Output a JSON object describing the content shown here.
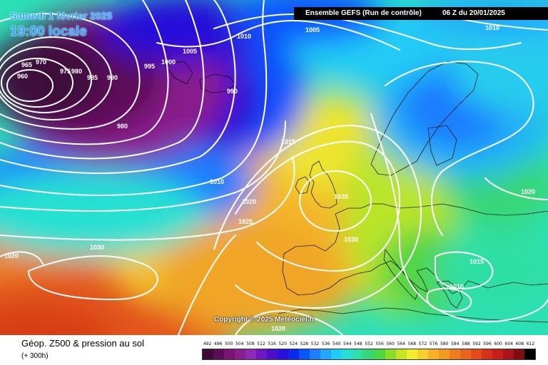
{
  "header": {
    "date_line": "Samedi 1 février 2025",
    "time_line": "19:00 locale",
    "model_label": "Ensemble GEFS  (Run de contrôle)",
    "run_label": "06 Z du 20/01/2025"
  },
  "copyright": "Copyright © 2025 Meteociel.fr",
  "footer": {
    "title": "Géop. Z500 & pression au sol",
    "lead_time": "(+ 300h)"
  },
  "legend": {
    "levels": [
      "492",
      "496",
      "500",
      "504",
      "508",
      "512",
      "516",
      "520",
      "524",
      "528",
      "532",
      "536",
      "540",
      "544",
      "548",
      "552",
      "556",
      "560",
      "564",
      "568",
      "572",
      "576",
      "580",
      "584",
      "588",
      "592",
      "596",
      "600",
      "604",
      "608",
      "612"
    ],
    "colors": [
      "#3d0a3a",
      "#5b0e57",
      "#7a1470",
      "#8a1e8c",
      "#8d2bb4",
      "#6a18c2",
      "#4a10c8",
      "#2810d8",
      "#0a28f0",
      "#0a55ff",
      "#1f7dff",
      "#24a8ff",
      "#20ccf5",
      "#25e0d2",
      "#2fdfa4",
      "#37d774",
      "#52d445",
      "#8cdc2c",
      "#c4e428",
      "#f2ec2f",
      "#f5cf2f",
      "#f6b128",
      "#f39a22",
      "#ee7d1f",
      "#e8631c",
      "#e04c1a",
      "#d63018",
      "#c81e1a",
      "#a8141a",
      "#7c0e10",
      "#000000"
    ]
  },
  "isobars": [
    {
      "value": "1010",
      "note": "top-right"
    },
    {
      "value": "1010",
      "note": "top-center"
    },
    {
      "value": "1005",
      "note": "top-center"
    },
    {
      "value": "1005",
      "note": "north-atlantic"
    },
    {
      "value": "1000",
      "note": "north-atlantic"
    },
    {
      "value": "995",
      "note": "north-atlantic"
    },
    {
      "value": "990",
      "note": "north-atlantic"
    },
    {
      "value": "990",
      "note": "iceland"
    },
    {
      "value": "985",
      "note": "low"
    },
    {
      "value": "980",
      "note": "low"
    },
    {
      "value": "975",
      "note": "low"
    },
    {
      "value": "970",
      "note": "low"
    },
    {
      "value": "965",
      "note": "low"
    },
    {
      "value": "960",
      "note": "low"
    },
    {
      "value": "980",
      "note": "south-of-low"
    },
    {
      "value": "1015",
      "note": "north-sea"
    },
    {
      "value": "1010",
      "note": "atlantic"
    },
    {
      "value": "1020",
      "note": "atlantic"
    },
    {
      "value": "1025",
      "note": "atlantic"
    },
    {
      "value": "1035",
      "note": "britain"
    },
    {
      "value": "1030",
      "note": "france"
    },
    {
      "value": "1030",
      "note": "central-atlantic"
    },
    {
      "value": "1020",
      "note": "west-edge"
    },
    {
      "value": "1020",
      "note": "bottom"
    },
    {
      "value": "1020",
      "note": "russia"
    },
    {
      "value": "1015",
      "note": "balkans"
    },
    {
      "value": "1010",
      "note": "greece"
    }
  ]
}
